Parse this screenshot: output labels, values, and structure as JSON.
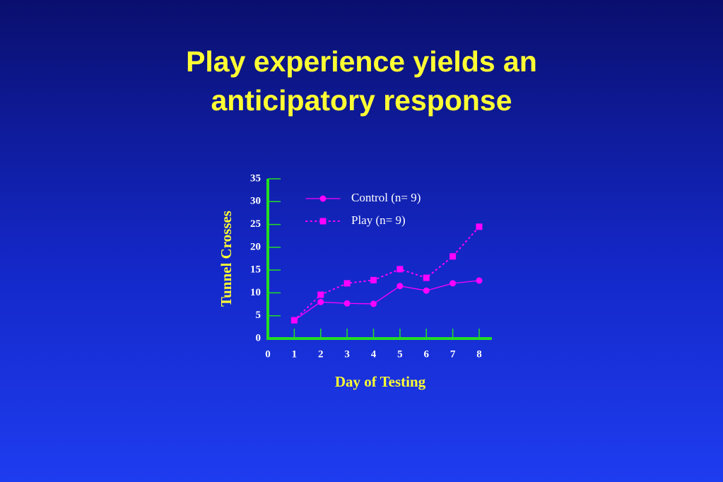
{
  "chart_data": {
    "type": "line",
    "title": "Play experience yields an anticipatory response",
    "x_label": "Day of Testing",
    "y_label": "Tunnel Crosses",
    "x": [
      1,
      2,
      3,
      4,
      5,
      6,
      7,
      8
    ],
    "series": [
      {
        "name": "Control (n= 9)",
        "color": "#ff00ff",
        "marker": "circle",
        "line_style": "solid",
        "values": [
          4.0,
          8.0,
          7.7,
          7.6,
          11.5,
          10.5,
          12.1,
          12.7
        ]
      },
      {
        "name": "Play (n= 9)",
        "color": "#ff00ff",
        "marker": "square",
        "line_style": "dotted",
        "values": [
          4.0,
          9.6,
          12.1,
          12.8,
          15.2,
          13.3,
          18.0,
          24.5
        ]
      }
    ],
    "xlim": [
      0,
      8
    ],
    "xticks": [
      0,
      1,
      2,
      3,
      4,
      5,
      6,
      7,
      8
    ],
    "ylim": [
      0,
      35
    ],
    "yticks": [
      0,
      5,
      10,
      15,
      20,
      25,
      30,
      35
    ],
    "axis_color": "#22dd22",
    "legend": "top"
  }
}
